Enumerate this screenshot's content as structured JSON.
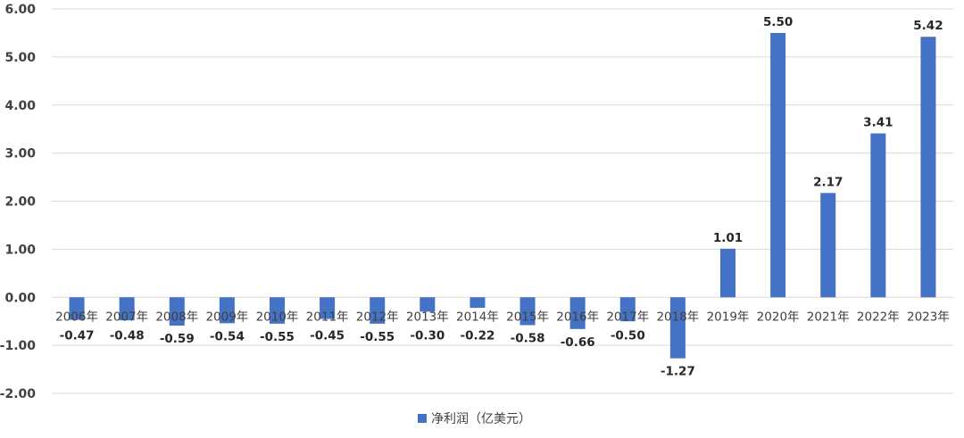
{
  "chart_data": {
    "type": "bar",
    "categories": [
      "2006年",
      "2007年",
      "2008年",
      "2009年",
      "2010年",
      "2011年",
      "2012年",
      "2013年",
      "2014年",
      "2015年",
      "2016年",
      "2017年",
      "2018年",
      "2019年",
      "2020年",
      "2021年",
      "2022年",
      "2023年"
    ],
    "series": [
      {
        "name": "净利润（亿美元）",
        "values": [
          -0.47,
          -0.48,
          -0.59,
          -0.54,
          -0.55,
          -0.45,
          -0.55,
          -0.3,
          -0.22,
          -0.58,
          -0.66,
          -0.5,
          -1.27,
          1.01,
          5.5,
          2.17,
          3.41,
          5.42
        ],
        "data_labels": [
          "-0.47",
          "-0.48",
          "-0.59",
          "-0.54",
          "-0.55",
          "-0.45",
          "-0.55",
          "-0.30",
          "-0.22",
          "-0.58",
          "-0.66",
          "-0.50",
          "-1.27",
          "1.01",
          "5.50",
          "2.17",
          "3.41",
          "5.42"
        ],
        "color": "#4472C4"
      }
    ],
    "ylim": [
      -2,
      6
    ],
    "y_ticks": [
      "6.00",
      "5.00",
      "4.00",
      "3.00",
      "2.00",
      "1.00",
      "0.00",
      "-1.00",
      "-2.00"
    ],
    "y_tick_values": [
      6,
      5,
      4,
      3,
      2,
      1,
      0,
      -1,
      -2
    ],
    "grid": true,
    "legend": "bottom-center",
    "gridline_color": "#D9D9D9"
  }
}
